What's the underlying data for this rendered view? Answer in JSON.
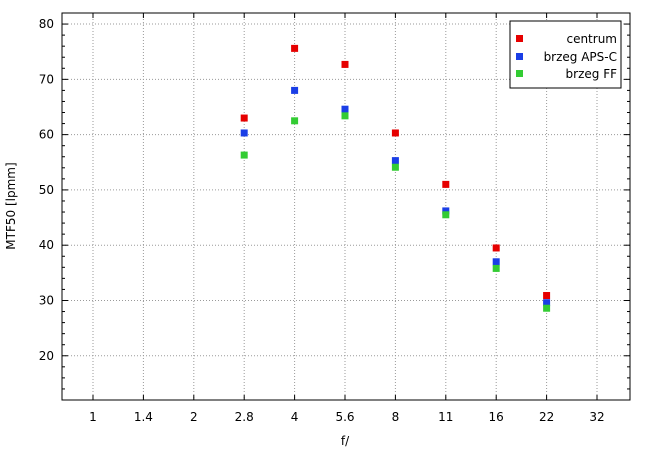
{
  "chart_data": {
    "type": "scatter",
    "title": "",
    "xlabel": "f/",
    "ylabel": "MTF50 [lpmm]",
    "x_scale": "log2",
    "x_ticks": [
      "1",
      "1.4",
      "2",
      "2.8",
      "4",
      "5.6",
      "8",
      "11",
      "16",
      "22",
      "32"
    ],
    "y_ticks": [
      "20",
      "30",
      "40",
      "50",
      "60",
      "70",
      "80"
    ],
    "ylim": [
      12,
      82
    ],
    "grid": true,
    "legend_position": "top-right",
    "x": [
      "2.8",
      "4",
      "5.6",
      "8",
      "11",
      "16",
      "22"
    ],
    "series": [
      {
        "name": "centrum",
        "color": "#e60000",
        "values": [
          63.0,
          75.6,
          72.7,
          60.3,
          51.0,
          39.5,
          30.9
        ]
      },
      {
        "name": "brzeg APS-C",
        "color": "#1a3ee6",
        "values": [
          60.3,
          68.0,
          64.6,
          55.3,
          46.2,
          37.0,
          29.6
        ]
      },
      {
        "name": "brzeg FF",
        "color": "#33cc33",
        "values": [
          56.3,
          62.5,
          63.4,
          54.1,
          45.5,
          35.8,
          28.6
        ]
      }
    ]
  }
}
